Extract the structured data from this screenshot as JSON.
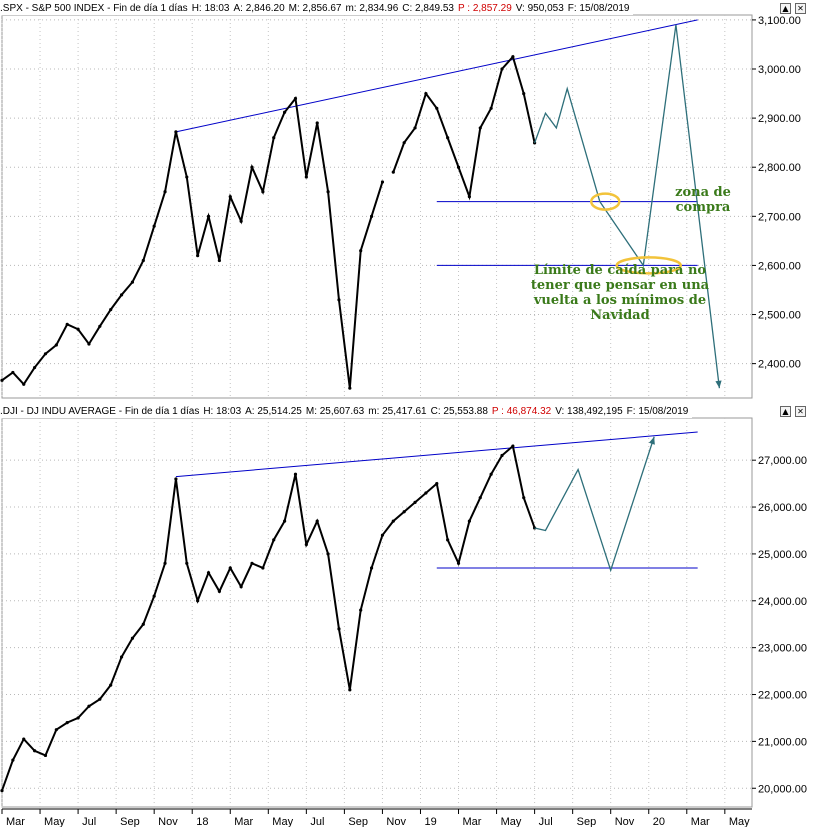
{
  "colors": {
    "price": "#000000",
    "trend": "#0000c8",
    "projection": "#2e6f7a",
    "highlight": "#f2c33a",
    "annotation": "#3a7a1a",
    "status_red": "#d00000"
  },
  "top_header": {
    "symbol": ".SPX - S&P 500 INDEX - Fin de día 1 días",
    "h": "H: 18:03",
    "a": "A: 2,846.20",
    "m": "M: 2,856.67",
    "mm": "m: 2,834.96",
    "c": "C: 2,849.53",
    "p": "P : 2,857.29",
    "v": "V: 950,053",
    "f": "F: 15/08/2019"
  },
  "bottom_header": {
    "symbol": ".DJI - DJ INDU AVERAGE - Fin de día 1 días",
    "h": "H: 18:03",
    "a": "A: 25,514.25",
    "m": "M: 25,607.63",
    "mm": "m: 25,417.61",
    "c": "C: 25,553.88",
    "p": "P : 46,874.32",
    "v": "V: 138,492,195",
    "f": "F: 15/08/2019"
  },
  "window_buttons": {
    "up": "▲",
    "close": "✕"
  },
  "annotations": {
    "zona_line1": "zona de",
    "zona_line2": "compra",
    "limite_line1": "Límite de caída para no",
    "limite_line2": "tener que pensar en una",
    "limite_line3": "vuelta a los mínimos de",
    "limite_line4": "Navidad"
  },
  "x_axis": {
    "labels": [
      "Mar",
      "May",
      "Jul",
      "Sep",
      "Nov",
      "18",
      "Mar",
      "May",
      "Jul",
      "Sep",
      "Nov",
      "19",
      "Mar",
      "May",
      "Jul",
      "Sep",
      "Nov",
      "20",
      "Mar",
      "May"
    ]
  },
  "chart_data": [
    {
      "type": "line",
      "title": ".SPX - S&P 500 INDEX",
      "ylim": [
        2330,
        3110
      ],
      "yticks": [
        "2,400.00",
        "2,500.00",
        "2,600.00",
        "2,700.00",
        "2,800.00",
        "2,900.00",
        "3,000.00",
        "3,100.00"
      ],
      "yvalues": [
        2400,
        2500,
        2600,
        2700,
        2800,
        2900,
        3000,
        3100
      ],
      "series": [
        {
          "x": [
            0,
            1,
            2,
            3,
            4,
            5,
            6,
            7,
            8,
            9,
            10,
            11,
            12,
            13,
            14,
            15,
            16,
            17,
            18,
            19,
            20,
            21,
            22,
            23,
            24,
            25,
            26,
            27,
            28,
            29,
            30,
            31,
            32,
            33,
            34,
            35
          ],
          "values": [
            2366,
            2382,
            2358,
            2392,
            2420,
            2438,
            2480,
            2470,
            2440,
            2476,
            2510,
            2540,
            2566,
            2610,
            2680,
            2750,
            2872,
            2780,
            2620,
            2700,
            2610,
            2740,
            2690,
            2800,
            2750,
            2860,
            2912,
            2940,
            2780,
            2890,
            2750,
            2530,
            2350,
            2630,
            2700,
            2770
          ]
        },
        {
          "x": [
            36,
            37,
            38,
            39,
            40,
            41,
            42,
            43,
            44,
            45,
            46,
            47,
            48,
            49
          ],
          "values": [
            2790,
            2850,
            2880,
            2950,
            2920,
            2860,
            2800,
            2740,
            2880,
            2920,
            3000,
            3025,
            2950,
            2849.53
          ]
        }
      ],
      "trend_lines": [
        {
          "from": [
            16,
            2872
          ],
          "to": [
            64,
            3100
          ]
        },
        {
          "from": [
            40,
            2730
          ],
          "to": [
            64,
            2730
          ]
        },
        {
          "from": [
            40,
            2600
          ],
          "to": [
            64,
            2600
          ]
        }
      ],
      "projection": [
        [
          49,
          2849.53
        ],
        [
          50,
          2910
        ],
        [
          51,
          2880
        ],
        [
          52,
          2960
        ],
        [
          55,
          2730
        ],
        [
          59,
          2600
        ],
        [
          62,
          3090
        ],
        [
          66,
          2350
        ]
      ]
    },
    {
      "type": "line",
      "title": ".DJI - DJ INDU AVERAGE",
      "ylim": [
        19600,
        27900
      ],
      "yticks": [
        "20,000.00",
        "21,000.00",
        "22,000.00",
        "23,000.00",
        "24,000.00",
        "25,000.00",
        "26,000.00",
        "27,000.00"
      ],
      "yvalues": [
        20000,
        21000,
        22000,
        23000,
        24000,
        25000,
        26000,
        27000
      ],
      "series": [
        {
          "x": [
            0,
            1,
            2,
            3,
            4,
            5,
            6,
            7,
            8,
            9,
            10,
            11,
            12,
            13,
            14,
            15,
            16,
            17,
            18,
            19,
            20,
            21,
            22,
            23,
            24,
            25,
            26,
            27,
            28,
            29,
            30,
            31,
            32,
            33,
            34,
            35,
            36,
            37,
            38,
            39,
            40,
            41,
            42,
            43,
            44,
            45,
            46,
            47,
            48,
            49
          ],
          "values": [
            19950,
            20600,
            21050,
            20800,
            20700,
            21250,
            21400,
            21500,
            21750,
            21900,
            22200,
            22800,
            23200,
            23500,
            24100,
            24800,
            26600,
            24800,
            24000,
            24600,
            24200,
            24700,
            24300,
            24800,
            24700,
            25300,
            25700,
            26700,
            25200,
            25700,
            25000,
            23400,
            22100,
            23800,
            24700,
            25400,
            25700,
            25900,
            26100,
            26300,
            26500,
            25300,
            24800,
            25700,
            26200,
            26700,
            27100,
            27300,
            26200,
            25554
          ]
        }
      ],
      "trend_lines": [
        {
          "from": [
            16,
            26650
          ],
          "to": [
            64,
            27600
          ]
        },
        {
          "from": [
            40,
            24700
          ],
          "to": [
            64,
            24700
          ]
        }
      ],
      "projection": [
        [
          49,
          25554
        ],
        [
          50,
          25500
        ],
        [
          53,
          26800
        ],
        [
          56,
          24650
        ],
        [
          60,
          27500
        ]
      ]
    }
  ]
}
